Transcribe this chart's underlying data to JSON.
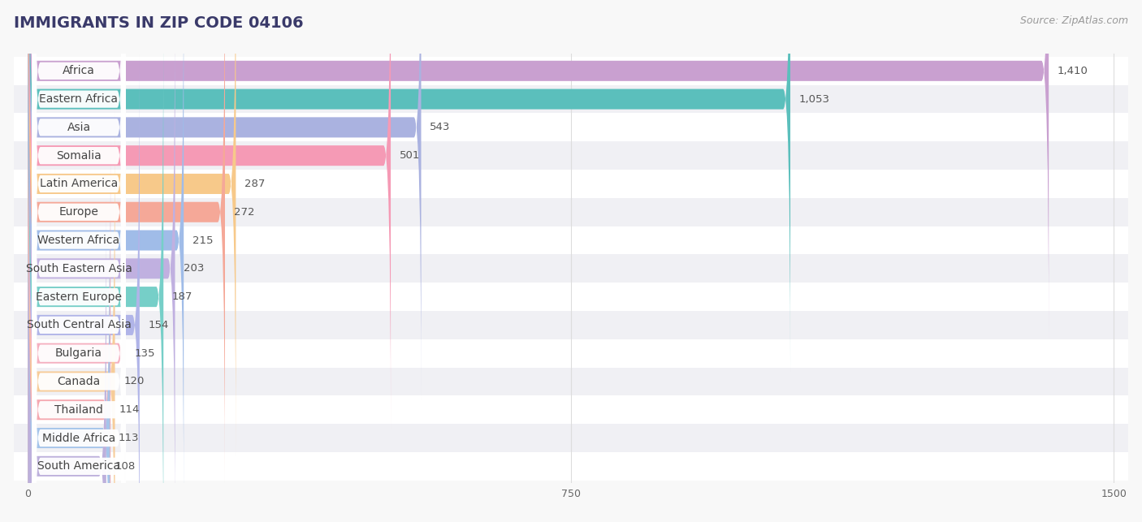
{
  "title": "IMMIGRANTS IN ZIP CODE 04106",
  "source": "Source: ZipAtlas.com",
  "categories": [
    "Africa",
    "Eastern Africa",
    "Asia",
    "Somalia",
    "Latin America",
    "Europe",
    "Western Africa",
    "South Eastern Asia",
    "Eastern Europe",
    "South Central Asia",
    "Bulgaria",
    "Canada",
    "Thailand",
    "Middle Africa",
    "South America"
  ],
  "values": [
    1410,
    1053,
    543,
    501,
    287,
    272,
    215,
    203,
    187,
    154,
    135,
    120,
    114,
    113,
    108
  ],
  "bar_colors": [
    "#c9a0d0",
    "#5bbfbc",
    "#aab2e0",
    "#f59ab5",
    "#f7c98a",
    "#f5a898",
    "#a0bce8",
    "#c0b0e0",
    "#76cfc8",
    "#b0b4e8",
    "#f5b0c0",
    "#f7cc98",
    "#f5a8b0",
    "#a4c4ea",
    "#bdb0dc"
  ],
  "xlim_max": 1500,
  "xticks": [
    0,
    750,
    1500
  ],
  "bg_color": "#f8f8f8",
  "row_colors": [
    "#ffffff",
    "#f0f0f4"
  ],
  "title_fontsize": 14,
  "source_fontsize": 9,
  "label_fontsize": 10,
  "value_fontsize": 9.5,
  "bar_height": 0.72,
  "title_color": "#3a3a6a",
  "source_color": "#999999",
  "value_color": "#555555",
  "label_color": "#444444",
  "grid_color": "#dddddd"
}
